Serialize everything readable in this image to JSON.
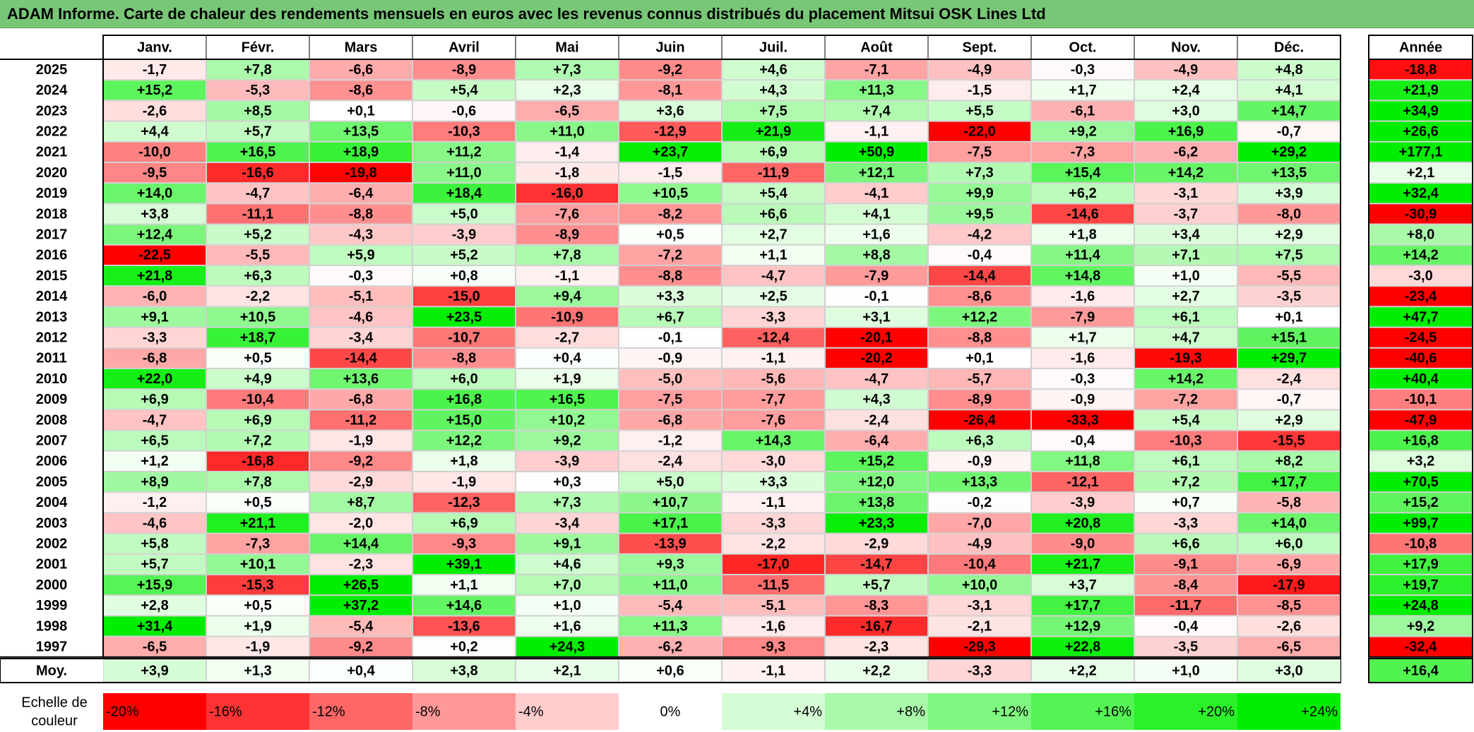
{
  "title": "ADAM Informe. Carte de chaleur des rendements mensuels en euros avec les revenus connus distribués du placement Mitsui OSK Lines Ltd",
  "colors": {
    "title_bg": "#77c777",
    "negative": "#ff0000",
    "neutral": "#ffffff",
    "positive": "#00ee00"
  },
  "chart_data": {
    "type": "heatmap",
    "months": [
      "Janv.",
      "Févr.",
      "Mars",
      "Avril",
      "Mai",
      "Juin",
      "Juil.",
      "Août",
      "Sept.",
      "Oct.",
      "Nov.",
      "Déc."
    ],
    "annual_label": "Année",
    "avg_label": "Moy.",
    "years": [
      "2025",
      "2024",
      "2023",
      "2022",
      "2021",
      "2020",
      "2019",
      "2018",
      "2017",
      "2016",
      "2015",
      "2014",
      "2013",
      "2012",
      "2011",
      "2010",
      "2009",
      "2008",
      "2007",
      "2006",
      "2005",
      "2004",
      "2003",
      "2002",
      "2001",
      "2000",
      "1999",
      "1998",
      "1997"
    ],
    "values": [
      [
        "-1,7",
        "+7,8",
        "-6,6",
        "-8,9",
        "+7,3",
        "-9,2",
        "+4,6",
        "-7,1",
        "-4,9",
        "-0,3",
        "-4,9",
        "+4,8"
      ],
      [
        "+15,2",
        "-5,3",
        "-8,6",
        "+5,4",
        "+2,3",
        "-8,1",
        "+4,3",
        "+11,3",
        "-1,5",
        "+1,7",
        "+2,4",
        "+4,1"
      ],
      [
        "-2,6",
        "+8,5",
        "+0,1",
        "-0,6",
        "-6,5",
        "+3,6",
        "+7,5",
        "+7,4",
        "+5,5",
        "-6,1",
        "+3,0",
        "+14,7"
      ],
      [
        "+4,4",
        "+5,7",
        "+13,5",
        "-10,3",
        "+11,0",
        "-12,9",
        "+21,9",
        "-1,1",
        "-22,0",
        "+9,2",
        "+16,9",
        "-0,7"
      ],
      [
        "-10,0",
        "+16,5",
        "+18,9",
        "+11,2",
        "-1,4",
        "+23,7",
        "+6,9",
        "+50,9",
        "-7,5",
        "-7,3",
        "-6,2",
        "+29,2"
      ],
      [
        "-9,5",
        "-16,6",
        "-19,8",
        "+11,0",
        "-1,8",
        "-1,5",
        "-11,9",
        "+12,1",
        "+7,3",
        "+15,4",
        "+14,2",
        "+13,5"
      ],
      [
        "+14,0",
        "-4,7",
        "-6,4",
        "+18,4",
        "-16,0",
        "+10,5",
        "+5,4",
        "-4,1",
        "+9,9",
        "+6,2",
        "-3,1",
        "+3,9"
      ],
      [
        "+3,8",
        "-11,1",
        "-8,8",
        "+5,0",
        "-7,6",
        "-8,2",
        "+6,6",
        "+4,1",
        "+9,5",
        "-14,6",
        "-3,7",
        "-8,0"
      ],
      [
        "+12,4",
        "+5,2",
        "-4,3",
        "-3,9",
        "-8,9",
        "+0,5",
        "+2,7",
        "+1,6",
        "-4,2",
        "+1,8",
        "+3,4",
        "+2,9"
      ],
      [
        "-22,5",
        "-5,5",
        "+5,9",
        "+5,2",
        "+7,8",
        "-7,2",
        "+1,1",
        "+8,8",
        "-0,4",
        "+11,4",
        "+7,1",
        "+7,5"
      ],
      [
        "+21,8",
        "+6,3",
        "-0,3",
        "+0,8",
        "-1,1",
        "-8,8",
        "-4,7",
        "-7,9",
        "-14,4",
        "+14,8",
        "+1,0",
        "-5,5"
      ],
      [
        "-6,0",
        "-2,2",
        "-5,1",
        "-15,0",
        "+9,4",
        "+3,3",
        "+2,5",
        "-0,1",
        "-8,6",
        "-1,6",
        "+2,7",
        "-3,5"
      ],
      [
        "+9,1",
        "+10,5",
        "-4,6",
        "+23,5",
        "-10,9",
        "+6,7",
        "-3,3",
        "+3,1",
        "+12,2",
        "-7,9",
        "+6,1",
        "+0,1"
      ],
      [
        "-3,3",
        "+18,7",
        "-3,4",
        "-10,7",
        "-2,7",
        "-0,1",
        "-12,4",
        "-20,1",
        "-8,8",
        "+1,7",
        "+4,7",
        "+15,1"
      ],
      [
        "-6,8",
        "+0,5",
        "-14,4",
        "-8,8",
        "+0,4",
        "-0,9",
        "-1,1",
        "-20,2",
        "+0,1",
        "-1,6",
        "-19,3",
        "+29,7"
      ],
      [
        "+22,0",
        "+4,9",
        "+13,6",
        "+6,0",
        "+1,9",
        "-5,0",
        "-5,6",
        "-4,7",
        "-5,7",
        "-0,3",
        "+14,2",
        "-2,4"
      ],
      [
        "+6,9",
        "-10,4",
        "-6,8",
        "+16,8",
        "+16,5",
        "-7,5",
        "-7,7",
        "+4,3",
        "-8,9",
        "-0,9",
        "-7,2",
        "-0,7"
      ],
      [
        "-4,7",
        "+6,9",
        "-11,2",
        "+15,0",
        "+10,2",
        "-6,8",
        "-7,6",
        "-2,4",
        "-26,4",
        "-33,3",
        "+5,4",
        "+2,9"
      ],
      [
        "+6,5",
        "+7,2",
        "-1,9",
        "+12,2",
        "+9,2",
        "-1,2",
        "+14,3",
        "-6,4",
        "+6,3",
        "-0,4",
        "-10,3",
        "-15,5"
      ],
      [
        "+1,2",
        "-16,8",
        "-9,2",
        "+1,8",
        "-3,9",
        "-2,4",
        "-3,0",
        "+15,2",
        "-0,9",
        "+11,8",
        "+6,1",
        "+8,2"
      ],
      [
        "+8,9",
        "+7,8",
        "-2,9",
        "-1,9",
        "+0,3",
        "+5,0",
        "+3,3",
        "+12,0",
        "+13,3",
        "-12,1",
        "+7,2",
        "+17,7"
      ],
      [
        "-1,2",
        "+0,5",
        "+8,7",
        "-12,3",
        "+7,3",
        "+10,7",
        "-1,1",
        "+13,8",
        "-0,2",
        "-3,9",
        "+0,7",
        "-5,8"
      ],
      [
        "-4,6",
        "+21,1",
        "-2,0",
        "+6,9",
        "-3,4",
        "+17,1",
        "-3,3",
        "+23,3",
        "-7,0",
        "+20,8",
        "-3,3",
        "+14,0"
      ],
      [
        "+5,8",
        "-7,3",
        "+14,4",
        "-9,3",
        "+9,1",
        "-13,9",
        "-2,2",
        "-2,9",
        "-4,9",
        "-9,0",
        "+6,6",
        "+6,0"
      ],
      [
        "+5,7",
        "+10,1",
        "-2,3",
        "+39,1",
        "+4,6",
        "+9,3",
        "-17,0",
        "-14,7",
        "-10,4",
        "+21,7",
        "-9,1",
        "-6,9"
      ],
      [
        "+15,9",
        "-15,3",
        "+26,5",
        "+1,1",
        "+7,0",
        "+11,0",
        "-11,5",
        "+5,7",
        "+10,0",
        "+3,7",
        "-8,4",
        "-17,9"
      ],
      [
        "+2,8",
        "+0,5",
        "+37,2",
        "+14,6",
        "+1,0",
        "-5,4",
        "-5,1",
        "-8,3",
        "-3,1",
        "+17,7",
        "-11,7",
        "-8,5"
      ],
      [
        "+31,4",
        "+1,9",
        "-5,4",
        "-13,6",
        "+1,6",
        "+11,3",
        "-1,6",
        "-16,7",
        "-2,1",
        "+12,9",
        "-0,4",
        "-2,6"
      ],
      [
        "-6,5",
        "-1,9",
        "-9,2",
        "+0,2",
        "+24,3",
        "-6,2",
        "-9,3",
        "-2,3",
        "-29,3",
        "+22,8",
        "-3,5",
        "-6,5"
      ]
    ],
    "annual": [
      "-18,8",
      "+21,9",
      "+34,9",
      "+26,6",
      "+177,1",
      "+2,1",
      "+32,4",
      "-30,9",
      "+8,0",
      "+14,2",
      "-3,0",
      "-23,4",
      "+47,7",
      "-24,5",
      "-40,6",
      "+40,4",
      "-10,1",
      "-47,9",
      "+16,8",
      "+3,2",
      "+70,5",
      "+15,2",
      "+99,7",
      "-10,8",
      "+17,9",
      "+19,7",
      "+24,8",
      "+9,2",
      "-32,4"
    ],
    "averages": [
      "+3,9",
      "+1,3",
      "+0,4",
      "+3,8",
      "+2,1",
      "+0,6",
      "-1,1",
      "+2,2",
      "-3,3",
      "+2,2",
      "+1,0",
      "+3,0"
    ],
    "avg_annual": "+16,4",
    "scale_label_line1": "Echelle de",
    "scale_label_line2": "couleur",
    "scale": [
      "-20%",
      "-16%",
      "-12%",
      "-8%",
      "-4%",
      "0%",
      "+4%",
      "+8%",
      "+12%",
      "+16%",
      "+20%",
      "+24%"
    ],
    "scale_values": [
      -20,
      -16,
      -12,
      -8,
      -4,
      0,
      4,
      8,
      12,
      16,
      20,
      24
    ]
  }
}
